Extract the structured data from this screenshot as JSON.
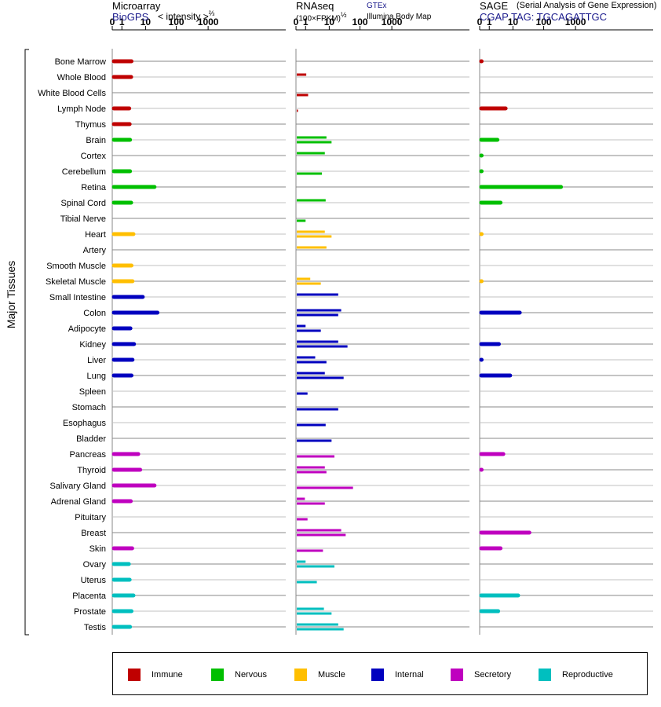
{
  "headers": {
    "microarray": {
      "title": "Microarray",
      "source": "BioGPS",
      "metric_prefix": "< intensity >",
      "metric_exp": "⅔"
    },
    "rnaseq": {
      "title": "RNAseq",
      "metric": "(100×FPKM)",
      "metric_exp": "½",
      "source1": "GTEx",
      "source2": "Illumina Body Map"
    },
    "sage": {
      "title": "SAGE",
      "subtitle": "(Serial Analysis of Gene Expression)",
      "tag": "CGAP TAG: TGCAGATTGC"
    }
  },
  "y_group_label": "Major Tissues",
  "legend": [
    {
      "label": "Immune",
      "color": "#bf0000"
    },
    {
      "label": "Nervous",
      "color": "#00bf00"
    },
    {
      "label": "Muscle",
      "color": "#ffbf00"
    },
    {
      "label": "Internal",
      "color": "#0000bf"
    },
    {
      "label": "Secretory",
      "color": "#bf00bf"
    },
    {
      "label": "Reproductive",
      "color": "#00bfbf"
    }
  ],
  "chart_data": {
    "type": "bar",
    "scale": "log",
    "tick_labels": [
      "0",
      "1",
      "10",
      "100",
      "1000"
    ],
    "tick_values": [
      0,
      1,
      10,
      100,
      1000
    ],
    "xlim": [
      0,
      1000
    ],
    "categories": [
      "Bone Marrow",
      "Whole Blood",
      "White Blood Cells",
      "Lymph Node",
      "Thymus",
      "Brain",
      "Cortex",
      "Cerebellum",
      "Retina",
      "Spinal Cord",
      "Tibial Nerve",
      "Heart",
      "Artery",
      "Smooth Muscle",
      "Skeletal Muscle",
      "Small Intestine",
      "Colon",
      "Adipocyte",
      "Kidney",
      "Liver",
      "Lung",
      "Spleen",
      "Stomach",
      "Esophagus",
      "Bladder",
      "Pancreas",
      "Thyroid",
      "Salivary Gland",
      "Adrenal Gland",
      "Pituitary",
      "Breast",
      "Skin",
      "Ovary",
      "Uterus",
      "Placenta",
      "Prostate",
      "Testis"
    ],
    "groups": [
      "Immune",
      "Immune",
      "Immune",
      "Immune",
      "Immune",
      "Nervous",
      "Nervous",
      "Nervous",
      "Nervous",
      "Nervous",
      "Nervous",
      "Muscle",
      "Muscle",
      "Muscle",
      "Muscle",
      "Internal",
      "Internal",
      "Internal",
      "Internal",
      "Internal",
      "Internal",
      "Internal",
      "Internal",
      "Internal",
      "Internal",
      "Secretory",
      "Secretory",
      "Secretory",
      "Secretory",
      "Secretory",
      "Secretory",
      "Secretory",
      "Reproductive",
      "Reproductive",
      "Reproductive",
      "Reproductive",
      "Reproductive"
    ],
    "panels": [
      {
        "name": "Microarray",
        "values": [
          3.0,
          2.9,
          null,
          2.4,
          2.5,
          2.6,
          null,
          2.6,
          20,
          2.9,
          null,
          3.6,
          null,
          3.0,
          3.3,
          8.0,
          25,
          2.7,
          3.8,
          3.3,
          3.0,
          null,
          null,
          null,
          null,
          5.5,
          6.5,
          20,
          2.8,
          null,
          null,
          3.2,
          2.3,
          2.5,
          3.6,
          3.0,
          2.6
        ]
      },
      {
        "name": "RNAseq",
        "values_gtex": [
          null,
          1.1,
          null,
          null,
          null,
          8.0,
          7.0,
          null,
          null,
          7.5,
          null,
          7.0,
          8.0,
          null,
          1.8,
          20,
          25,
          1.0,
          20,
          3.0,
          7.0,
          null,
          null,
          null,
          null,
          null,
          7.0,
          null,
          0.9,
          null,
          25,
          null,
          1.0,
          null,
          null,
          6.5,
          20
        ],
        "values_ibm": [
          null,
          null,
          1.4,
          0.03,
          null,
          12,
          null,
          5.5,
          null,
          null,
          1.0,
          12,
          null,
          null,
          5.0,
          null,
          20,
          5.0,
          40,
          8.0,
          30,
          1.3,
          20,
          7.5,
          12,
          15,
          8.0,
          60,
          7.0,
          1.3,
          35,
          6.0,
          15,
          3.5,
          null,
          12,
          30
        ]
      },
      {
        "name": "SAGE",
        "values": [
          0.05,
          null,
          null,
          5.5,
          null,
          2.6,
          0.05,
          0.05,
          350,
          3.5,
          null,
          0.03,
          null,
          null,
          0.03,
          null,
          17,
          null,
          3.0,
          0.05,
          8.0,
          null,
          null,
          null,
          null,
          4.5,
          0.05,
          null,
          null,
          null,
          35,
          3.5,
          null,
          null,
          15,
          2.8,
          null
        ]
      }
    ]
  }
}
